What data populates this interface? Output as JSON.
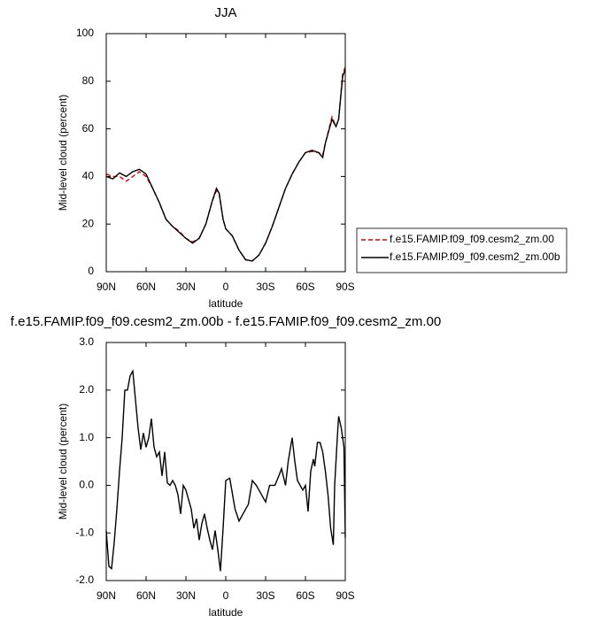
{
  "chart_data": [
    {
      "type": "line",
      "title": "JJA",
      "x_label": "latitude",
      "y_label": "Mid-level cloud (percent)",
      "xlim": [
        90,
        -90
      ],
      "xticks": [
        {
          "value": 90,
          "label": "90N"
        },
        {
          "value": 60,
          "label": "60N"
        },
        {
          "value": 30,
          "label": "30N"
        },
        0,
        {
          "value": -30,
          "label": "30S"
        },
        {
          "value": -60,
          "label": "60S"
        },
        {
          "value": -90,
          "label": "90S"
        }
      ],
      "ylim": [
        0,
        100
      ],
      "yticks": [
        0,
        20,
        40,
        60,
        80,
        100
      ],
      "legend": "right",
      "x": [
        90,
        85,
        80,
        75,
        70,
        65,
        60,
        55,
        50,
        45,
        40,
        35,
        30,
        25,
        20,
        15,
        10,
        7,
        5,
        2,
        0,
        -5,
        -10,
        -15,
        -20,
        -25,
        -30,
        -35,
        -40,
        -45,
        -50,
        -55,
        -60,
        -65,
        -70,
        -73,
        -75,
        -80,
        -83,
        -85,
        -88,
        -90
      ],
      "series": [
        {
          "name": "f.e15.FAMIP.f09_f09.cesm2_zm.00",
          "color": "#e00000",
          "dash": "dashed",
          "values": [
            41,
            40,
            40,
            38,
            40,
            42,
            40,
            35,
            29,
            22,
            19,
            17,
            14,
            12.5,
            14,
            20,
            30,
            34,
            33,
            22,
            18,
            15,
            9,
            5,
            4.5,
            7,
            12,
            19,
            27,
            35,
            41,
            46,
            50,
            50.5,
            50,
            49,
            54,
            65,
            61,
            64,
            83,
            86
          ]
        },
        {
          "name": "f.e15.FAMIP.f09_f09.cesm2_zm.00b",
          "color": "#000000",
          "dash": "solid",
          "values": [
            40,
            39,
            41.5,
            40,
            42,
            43,
            41,
            35,
            29,
            22,
            19,
            16.5,
            14,
            12,
            14,
            20,
            30,
            35,
            33,
            22,
            18,
            15,
            9,
            5,
            4.5,
            7,
            12,
            19,
            27,
            35,
            41,
            46,
            50,
            51,
            50,
            48,
            54,
            64,
            61,
            64,
            82,
            85
          ]
        }
      ]
    },
    {
      "type": "line",
      "title": "f.e15.FAMIP.f09_f09.cesm2_zm.00b - f.e15.FAMIP.f09_f09.cesm2_zm.00",
      "x_label": "latitude",
      "y_label": "Mid-level cloud (percent)",
      "xlim": [
        90,
        -90
      ],
      "xticks": [
        {
          "value": 90,
          "label": "90N"
        },
        {
          "value": 60,
          "label": "60N"
        },
        {
          "value": 30,
          "label": "30N"
        },
        0,
        {
          "value": -30,
          "label": "30S"
        },
        {
          "value": -60,
          "label": "60S"
        },
        {
          "value": -90,
          "label": "90S"
        }
      ],
      "ylim": [
        -2,
        3
      ],
      "yticks": [
        {
          "value": -2,
          "label": "-2.0"
        },
        {
          "value": -1,
          "label": "-1.0"
        },
        {
          "value": 0,
          "label": "0.0"
        },
        {
          "value": 1,
          "label": "1.0"
        },
        {
          "value": 2,
          "label": "2.0"
        },
        {
          "value": 3,
          "label": "3.0"
        }
      ],
      "x": [
        90,
        88,
        86,
        84,
        82,
        80,
        78,
        76,
        74,
        72,
        70,
        68,
        66,
        64,
        62,
        60,
        58,
        56,
        54,
        52,
        50,
        48,
        46,
        44,
        42,
        40,
        38,
        36,
        34,
        32,
        30,
        28,
        26,
        24,
        22,
        20,
        18,
        16,
        14,
        12,
        10,
        8,
        6,
        4,
        2,
        0,
        -3,
        -7,
        -10,
        -13,
        -17,
        -20,
        -23,
        -27,
        -30,
        -33,
        -37,
        -40,
        -42,
        -45,
        -47,
        -50,
        -52,
        -54,
        -56,
        -58,
        -60,
        -62,
        -64,
        -66,
        -67,
        -69,
        -71,
        -73,
        -75,
        -77,
        -79,
        -81,
        -82,
        -84,
        -85,
        -87,
        -89,
        -90
      ],
      "series": [
        {
          "color": "#000000",
          "dash": "solid",
          "values": [
            -0.95,
            -1.7,
            -1.75,
            -1.2,
            -0.5,
            0.3,
            1.0,
            2.0,
            2.0,
            2.3,
            2.4,
            1.8,
            1.2,
            0.75,
            1.1,
            0.8,
            1.0,
            1.4,
            0.8,
            0.6,
            0.7,
            0.2,
            0.7,
            0.05,
            0.0,
            0.1,
            0.0,
            -0.2,
            -0.6,
            0.0,
            -0.1,
            -0.3,
            -0.5,
            -0.9,
            -0.7,
            -1.15,
            -0.8,
            -0.6,
            -0.9,
            -1.15,
            -1.35,
            -0.95,
            -1.35,
            -1.8,
            -0.9,
            0.1,
            0.15,
            -0.5,
            -0.75,
            -0.6,
            -0.4,
            0.1,
            0.0,
            -0.2,
            -0.35,
            0.0,
            0.0,
            0.2,
            0.35,
            0.0,
            0.5,
            1.0,
            0.5,
            0.1,
            0.0,
            -0.1,
            0.0,
            -0.55,
            0.3,
            0.55,
            0.4,
            0.9,
            0.9,
            0.7,
            0.3,
            -0.2,
            -0.9,
            -1.25,
            0.0,
            1.0,
            1.45,
            1.2,
            0.8,
            -1.1
          ]
        }
      ]
    }
  ]
}
